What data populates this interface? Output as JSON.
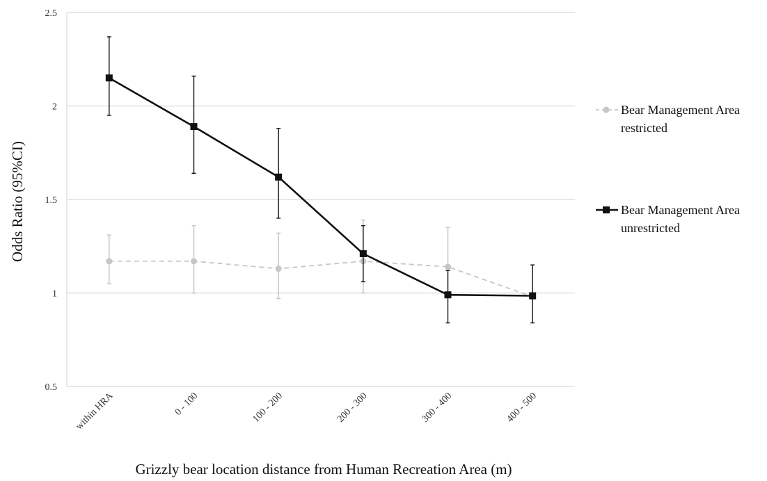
{
  "chart_data": {
    "type": "line",
    "title": "",
    "xlabel": "Grizzly bear location distance from Human Recreation Area (m)",
    "ylabel": "Odds Ratio (95%CI)",
    "categories": [
      "within HRA",
      "0 - 100",
      "100 - 200",
      "200 - 300",
      "300 - 400",
      "400 - 500"
    ],
    "ylim": [
      0.5,
      2.5
    ],
    "yticks": [
      "0.5",
      "1",
      "1.5",
      "2",
      "2.5"
    ],
    "grid": true,
    "legend_position": "right",
    "series": [
      {
        "name": "Bear Management Area restricted",
        "legend_lines": [
          "Bear Management Area",
          "restricted"
        ],
        "color": "#c6c6c6",
        "line_style": "dashed",
        "marker": "circle",
        "values": [
          1.17,
          1.17,
          1.13,
          1.17,
          1.14,
          0.98
        ],
        "ci_low": [
          1.05,
          1.0,
          0.97,
          1.0,
          0.99,
          0.98
        ],
        "ci_high": [
          1.31,
          1.36,
          1.32,
          1.39,
          1.35,
          0.98
        ]
      },
      {
        "name": "Bear Management Area unrestricted",
        "legend_lines": [
          "Bear Management Area",
          "unrestricted"
        ],
        "color": "#111111",
        "line_style": "solid",
        "marker": "square",
        "values": [
          2.15,
          1.89,
          1.62,
          1.21,
          0.99,
          0.985
        ],
        "ci_low": [
          1.95,
          1.64,
          1.4,
          1.06,
          0.84,
          0.84
        ],
        "ci_high": [
          2.37,
          2.16,
          1.88,
          1.36,
          1.12,
          1.15
        ]
      }
    ]
  }
}
